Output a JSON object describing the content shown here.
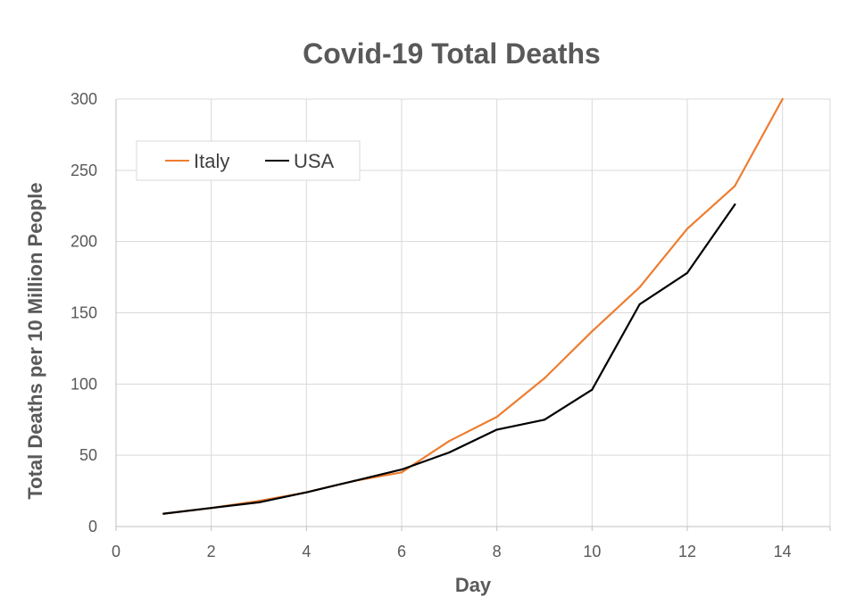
{
  "chart_data": {
    "type": "line",
    "title": "Covid-19 Total Deaths",
    "xlabel": "Day",
    "ylabel": "Total Deaths per 10 Million People",
    "xlim": [
      0,
      15
    ],
    "ylim": [
      0,
      300
    ],
    "x_ticks": [
      "0",
      "2",
      "4",
      "6",
      "8",
      "10",
      "12",
      "14"
    ],
    "y_ticks": [
      "0",
      "50",
      "100",
      "150",
      "200",
      "250",
      "300"
    ],
    "grid": true,
    "legend": "top-left",
    "series": [
      {
        "name": "Italy",
        "color": "#ED7D31",
        "points": [
          {
            "x": 1,
            "y": 9
          },
          {
            "x": 2,
            "y": 13
          },
          {
            "x": 3,
            "y": 18
          },
          {
            "x": 4,
            "y": 24
          },
          {
            "x": 5,
            "y": 32
          },
          {
            "x": 6,
            "y": 38
          },
          {
            "x": 7,
            "y": 60
          },
          {
            "x": 8,
            "y": 77
          },
          {
            "x": 9,
            "y": 104
          },
          {
            "x": 10,
            "y": 137
          },
          {
            "x": 11,
            "y": 168
          },
          {
            "x": 12,
            "y": 209
          },
          {
            "x": 13,
            "y": 239
          },
          {
            "x": 14,
            "y": 300
          }
        ]
      },
      {
        "name": "USA",
        "color": "#000000",
        "points": [
          {
            "x": 1,
            "y": 9
          },
          {
            "x": 2,
            "y": 13
          },
          {
            "x": 3,
            "y": 17
          },
          {
            "x": 4,
            "y": 24
          },
          {
            "x": 5,
            "y": 32
          },
          {
            "x": 6,
            "y": 40
          },
          {
            "x": 7,
            "y": 52
          },
          {
            "x": 8,
            "y": 68
          },
          {
            "x": 9,
            "y": 75
          },
          {
            "x": 10,
            "y": 96
          },
          {
            "x": 11,
            "y": 156
          },
          {
            "x": 12,
            "y": 178
          },
          {
            "x": 13,
            "y": 226
          }
        ]
      }
    ]
  }
}
